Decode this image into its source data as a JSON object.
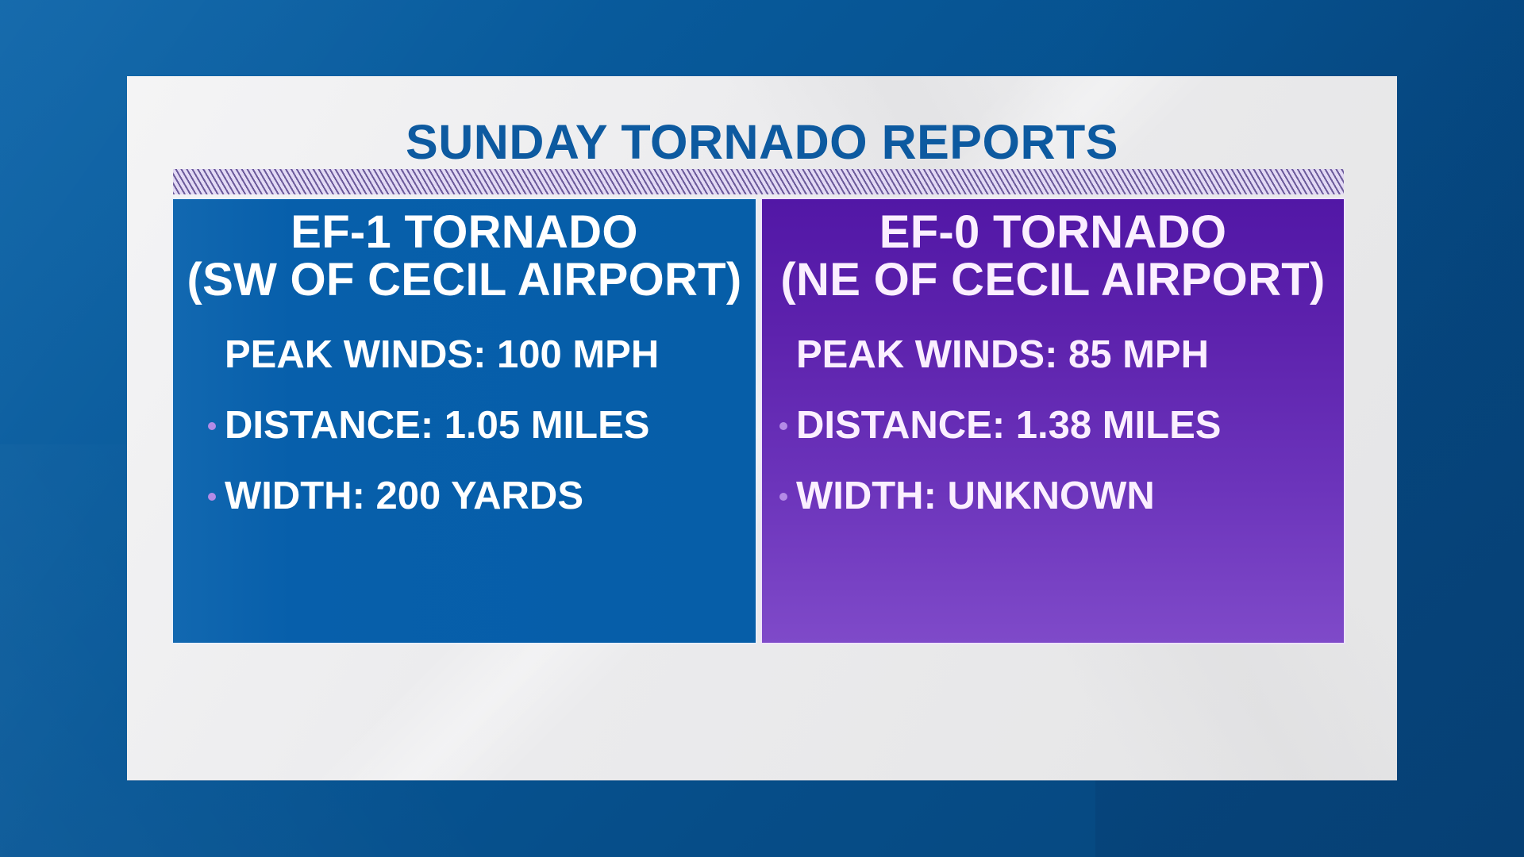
{
  "graphic": {
    "title": "SUNDAY TORNADO REPORTS",
    "colors": {
      "background": "#064d88",
      "card": "#ececee",
      "title": "#0d5aa0",
      "left_panel": "#065ea8",
      "right_panel_top": "#5217a6",
      "right_panel_bottom": "#7f4ac9",
      "bullet": "#b48be6",
      "text": "#ffffff"
    }
  },
  "panels": [
    {
      "heading_line1": "EF-1 TORNADO",
      "heading_line2": "(SW OF CECIL AIRPORT)",
      "stats": [
        {
          "text": "PEAK WINDS: 100 MPH",
          "bullet": false
        },
        {
          "text": "DISTANCE: 1.05 MILES",
          "bullet": true
        },
        {
          "text": "WIDTH: 200 YARDS",
          "bullet": true
        }
      ]
    },
    {
      "heading_line1": "EF-0 TORNADO",
      "heading_line2": "(NE OF CECIL AIRPORT)",
      "stats": [
        {
          "text": "PEAK WINDS: 85 MPH",
          "bullet": false
        },
        {
          "text": "DISTANCE: 1.38 MILES",
          "bullet": true
        },
        {
          "text": "WIDTH: UNKNOWN",
          "bullet": true
        }
      ]
    }
  ]
}
